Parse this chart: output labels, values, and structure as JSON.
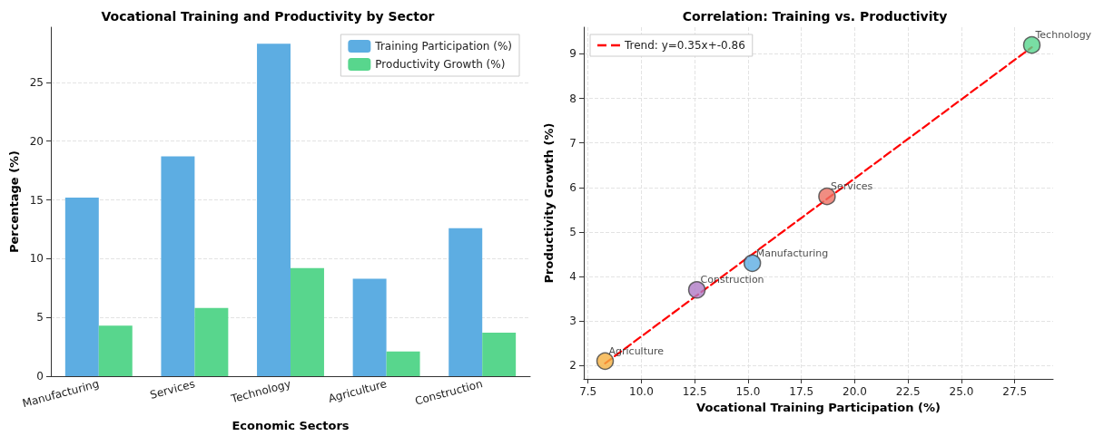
{
  "chart_data": [
    {
      "type": "bar",
      "title": "Vocational Training and Productivity by Sector",
      "xlabel": "Economic Sectors",
      "ylabel": "Percentage (%)",
      "categories": [
        "Manufacturing",
        "Services",
        "Technology",
        "Agriculture",
        "Construction"
      ],
      "series": [
        {
          "name": "Training Participation (%)",
          "color": "#5dade2",
          "values": [
            15.2,
            18.7,
            28.3,
            8.3,
            12.6
          ]
        },
        {
          "name": "Productivity Growth (%)",
          "color": "#58d68d",
          "values": [
            4.3,
            5.8,
            9.2,
            2.1,
            3.7
          ]
        }
      ],
      "ylim": [
        0,
        29.7
      ],
      "yticks": [
        0,
        5,
        10,
        15,
        20,
        25
      ],
      "grid": "y",
      "legend": "top right"
    },
    {
      "type": "scatter",
      "title": "Correlation: Training vs. Productivity",
      "xlabel": "Vocational Training Participation (%)",
      "ylabel": "Productivity Growth (%)",
      "series": [
        {
          "x": [
            15.2,
            18.7,
            28.3,
            8.3,
            12.6
          ],
          "values": [
            4.3,
            5.8,
            9.2,
            2.1,
            3.7
          ],
          "colors": [
            "#5dade2",
            "#ec7063",
            "#58d68d",
            "#f5b041",
            "#af7ac5"
          ],
          "marker": "circle"
        },
        {
          "type": "line",
          "name": "Trend: y=0.35x+-0.86",
          "color": "#ff0000",
          "x": [
            8.3,
            28.3
          ],
          "values": [
            2.05,
            9.15
          ],
          "line_style": "dashed",
          "marker": "none"
        }
      ],
      "annotations": [
        {
          "text": "Manufacturing",
          "x": 15.2,
          "y": 4.3
        },
        {
          "text": "Services",
          "x": 18.7,
          "y": 5.8
        },
        {
          "text": "Technology",
          "x": 28.3,
          "y": 9.2
        },
        {
          "text": "Agriculture",
          "x": 8.3,
          "y": 2.1
        },
        {
          "text": "Construction",
          "x": 12.6,
          "y": 3.7
        }
      ],
      "xlim": [
        7.3,
        29.3
      ],
      "xticks": [
        {
          "value": 7.5,
          "label": "7.5"
        },
        {
          "value": 10,
          "label": "10.0"
        },
        {
          "value": 12.5,
          "label": "12.5"
        },
        {
          "value": 15,
          "label": "15.0"
        },
        {
          "value": 17.5,
          "label": "17.5"
        },
        {
          "value": 20,
          "label": "20.0"
        },
        {
          "value": 22.5,
          "label": "22.5"
        },
        {
          "value": 25,
          "label": "25.0"
        },
        {
          "value": 27.5,
          "label": "27.5"
        }
      ],
      "ylim": [
        1.7,
        9.6
      ],
      "yticks": [
        2,
        3,
        4,
        5,
        6,
        7,
        8,
        9
      ],
      "grid": true,
      "legend": "top left"
    }
  ]
}
